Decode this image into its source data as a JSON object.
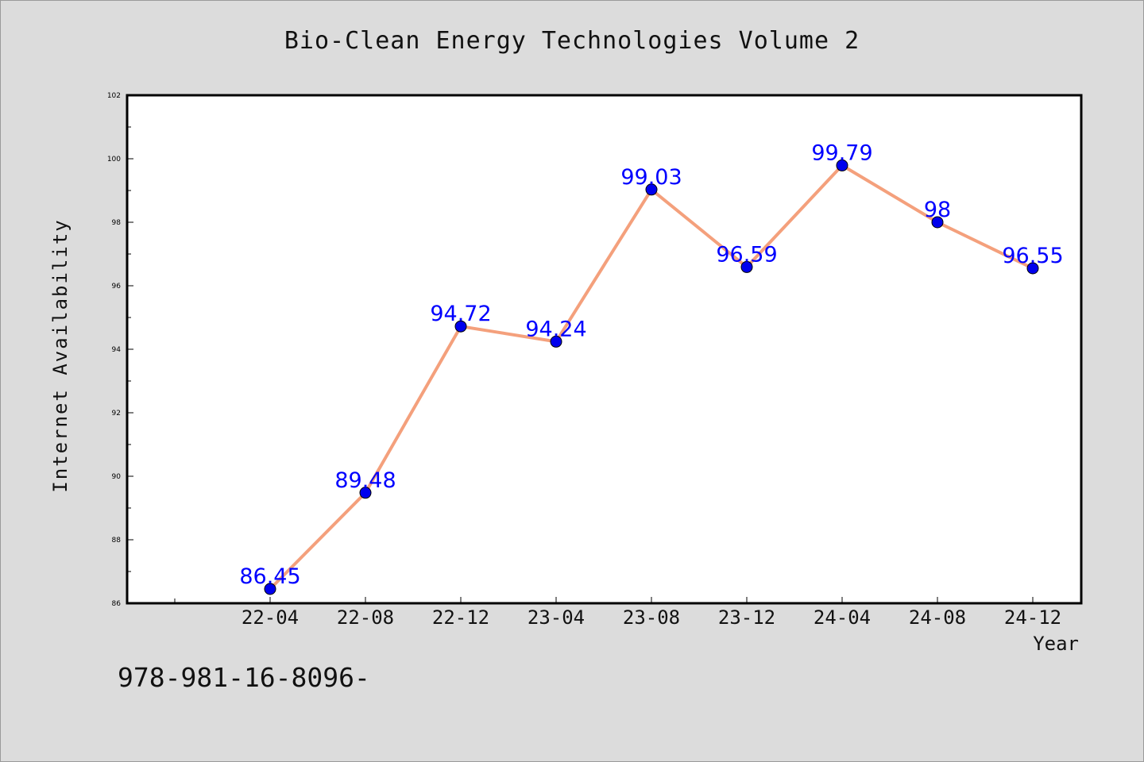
{
  "figure": {
    "footnote": "978-981-16-8096-"
  },
  "chart_data": {
    "type": "line",
    "title": "Bio-Clean Energy Technologies Volume 2",
    "xlabel": "Year",
    "ylabel": "Internet Availability",
    "categories": [
      "22-04",
      "22-08",
      "22-12",
      "23-04",
      "23-08",
      "23-12",
      "24-04",
      "24-08",
      "24-12"
    ],
    "series": [
      {
        "values": [
          86.45,
          89.48,
          94.72,
          94.24,
          99.03,
          96.59,
          99.79,
          98,
          96.55
        ],
        "labels": [
          "86.45",
          "89.48",
          "94.72",
          "94.24",
          "99.03",
          "96.59",
          "99.79",
          "98",
          "96.55"
        ],
        "line_color": "#f4a07c",
        "marker_color": "#0000ee",
        "label_color": "#0000ff"
      }
    ],
    "ylim": [
      86,
      102
    ],
    "yticks": [
      "86",
      "88",
      "90",
      "92",
      "94",
      "96",
      "98",
      "100",
      "102"
    ],
    "grid": false,
    "legend": "none"
  }
}
